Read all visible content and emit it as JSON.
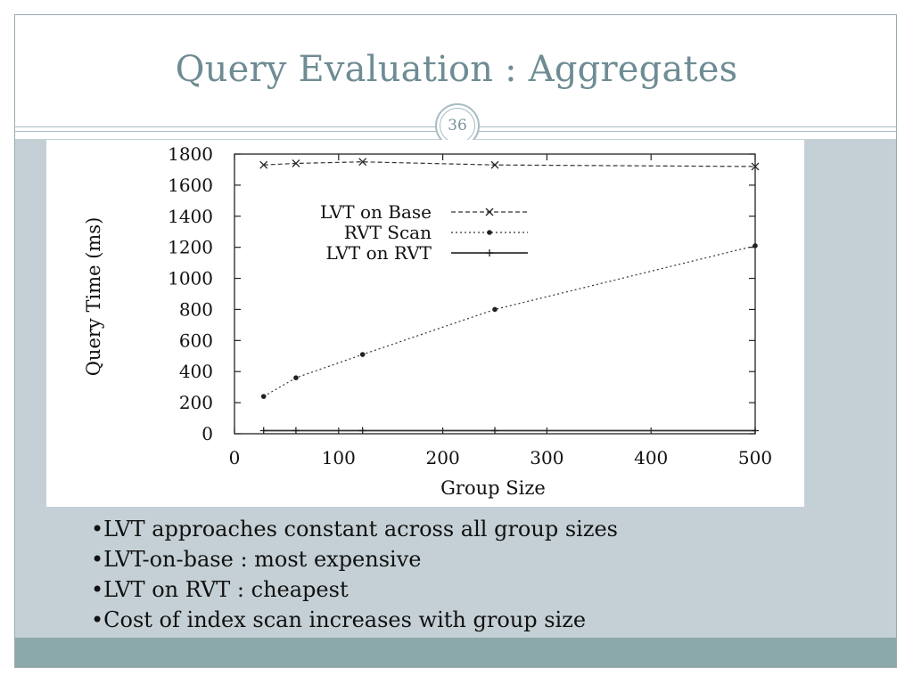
{
  "slide": {
    "title": "Query Evaluation : Aggregates",
    "page_number": "36",
    "colors": {
      "title": "#6e8c93",
      "panel": "#c4d0d5",
      "footer": "#8ba8ab",
      "frame": "#9aa9ae"
    }
  },
  "bullets": [
    "•LVT approaches constant across all group sizes",
    "•LVT-on-base : most expensive",
    "•LVT on RVT : cheapest",
    "•Cost of index scan increases with group size"
  ],
  "chart_data": {
    "type": "line",
    "xlabel": "Group Size",
    "ylabel": "Query Time (ms)",
    "xlim": [
      0,
      500
    ],
    "ylim": [
      0,
      1800
    ],
    "x_ticks": [
      "0",
      "100",
      "200",
      "300",
      "400",
      "500"
    ],
    "y_ticks": [
      "0",
      "200",
      "400",
      "600",
      "800",
      "1000",
      "1200",
      "1400",
      "1600",
      "1800"
    ],
    "legend_position": "upper-left inside plot",
    "series": [
      {
        "name": "LVT on Base",
        "marker": "x",
        "line": "dashed",
        "x": [
          28,
          59,
          123,
          250,
          500
        ],
        "y": [
          1730,
          1740,
          1750,
          1730,
          1720
        ]
      },
      {
        "name": "RVT Scan",
        "marker": "dot",
        "line": "dotted",
        "x": [
          28,
          59,
          123,
          250,
          500
        ],
        "y": [
          240,
          360,
          510,
          800,
          1210
        ]
      },
      {
        "name": "LVT on RVT",
        "marker": "plus",
        "line": "solid",
        "x": [
          28,
          59,
          123,
          250,
          500
        ],
        "y": [
          20,
          20,
          20,
          20,
          20
        ]
      }
    ]
  }
}
